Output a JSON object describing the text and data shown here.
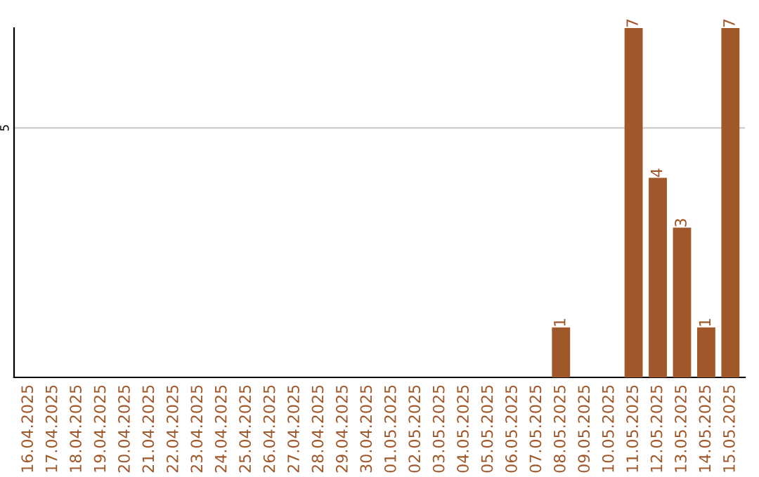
{
  "chart_data": {
    "type": "bar",
    "categories": [
      "16.04.2025",
      "17.04.2025",
      "18.04.2025",
      "19.04.2025",
      "20.04.2025",
      "21.04.2025",
      "22.04.2025",
      "23.04.2025",
      "24.04.2025",
      "25.04.2025",
      "26.04.2025",
      "27.04.2025",
      "28.04.2025",
      "29.04.2025",
      "30.04.2025",
      "01.05.2025",
      "02.05.2025",
      "03.05.2025",
      "04.05.2025",
      "05.05.2025",
      "06.05.2025",
      "07.05.2025",
      "08.05.2025",
      "09.05.2025",
      "10.05.2025",
      "11.05.2025",
      "12.05.2025",
      "13.05.2025",
      "14.05.2025",
      "15.05.2025"
    ],
    "values": [
      null,
      null,
      null,
      null,
      null,
      null,
      null,
      null,
      null,
      null,
      null,
      null,
      null,
      null,
      null,
      null,
      null,
      null,
      null,
      null,
      null,
      null,
      1,
      null,
      null,
      7,
      4,
      3,
      1,
      7
    ],
    "value_labels": [
      null,
      null,
      null,
      null,
      null,
      null,
      null,
      null,
      null,
      null,
      null,
      null,
      null,
      null,
      null,
      null,
      null,
      null,
      null,
      null,
      null,
      null,
      "1",
      null,
      null,
      "7",
      "4",
      "3",
      "1",
      "7"
    ],
    "color": "#a0572a",
    "ylim": [
      0,
      7
    ],
    "ref_lines": [
      {
        "axis": "y",
        "value": 5,
        "label": "5",
        "color": "#cccccc"
      }
    ],
    "legend": false
  }
}
